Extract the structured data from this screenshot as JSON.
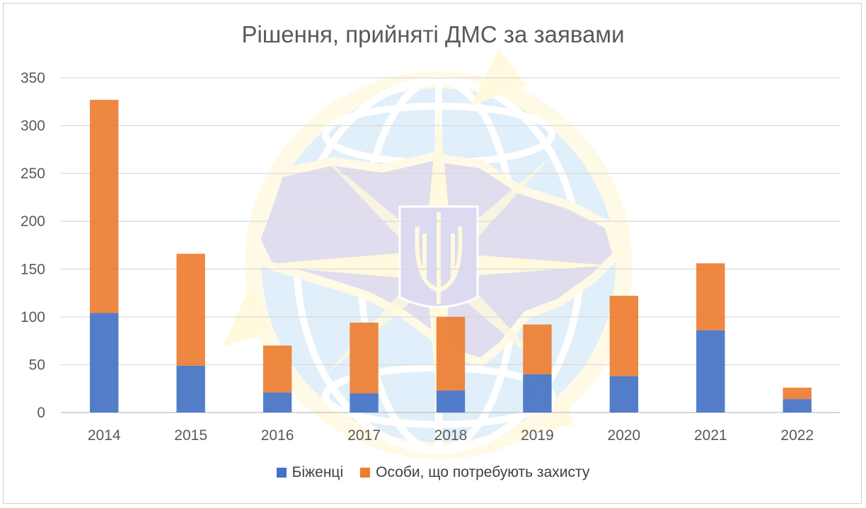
{
  "chart_data": {
    "type": "bar",
    "stacked": true,
    "title": "Рішення, прийняті ДМС за заявами",
    "categories": [
      "2014",
      "2015",
      "2016",
      "2017",
      "2018",
      "2019",
      "2020",
      "2021",
      "2022"
    ],
    "series": [
      {
        "name": "Біженці",
        "color": "#4472C4",
        "values": [
          104,
          49,
          21,
          20,
          23,
          40,
          38,
          86,
          14
        ]
      },
      {
        "name": "Особи, що потребують захисту",
        "color": "#ED7D31",
        "values": [
          223,
          117,
          49,
          74,
          77,
          52,
          84,
          70,
          12
        ]
      }
    ],
    "ylim": [
      0,
      350
    ],
    "yticks": [
      "0",
      "50",
      "100",
      "150",
      "200",
      "250",
      "300",
      "350"
    ],
    "grid": true,
    "legend": "bottom",
    "watermark": "globe-trident-emblem"
  }
}
